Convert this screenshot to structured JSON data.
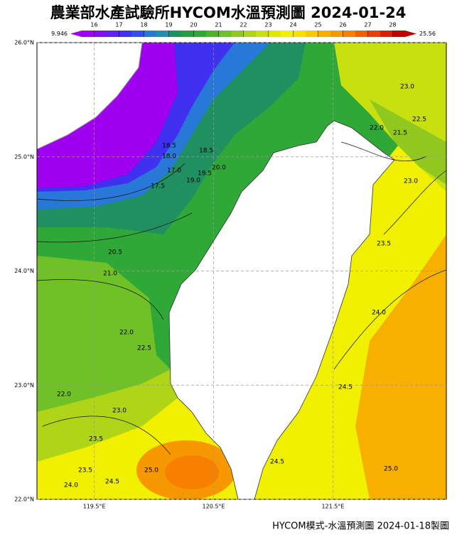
{
  "title": "農業部水產試驗所HYCOM水溫預測圖 2024-01-24",
  "colorbar": {
    "range": [
      15.5,
      28.5
    ],
    "ticks": [
      16,
      17,
      18,
      19,
      20,
      21,
      22,
      23,
      24,
      25,
      26,
      27,
      28
    ],
    "colors": [
      "#a000f0",
      "#8010f0",
      "#6020f0",
      "#4030f0",
      "#3050e8",
      "#2878d8",
      "#2090b0",
      "#209060",
      "#20a040",
      "#30a838",
      "#50b030",
      "#70c028",
      "#90c820",
      "#b0d418",
      "#c8e010",
      "#e0e800",
      "#f0f000",
      "#f8e000",
      "#f8c800",
      "#f8b000",
      "#f89800",
      "#f88000",
      "#f06000",
      "#e84000",
      "#d82000",
      "#c00000"
    ],
    "min_label": "9.946",
    "max_label": "25.56"
  },
  "map": {
    "lat_range": [
      22,
      26
    ],
    "lon_range": [
      119.02,
      122.45
    ],
    "lat_ticks": [
      {
        "value": 26,
        "label": "26.0°N"
      },
      {
        "value": 25,
        "label": "25.0°N"
      },
      {
        "value": 24,
        "label": "24.0°N"
      },
      {
        "value": 23,
        "label": "23.0°N"
      },
      {
        "value": 22,
        "label": "22.0°N"
      }
    ],
    "lon_ticks": [
      {
        "value": 119.5,
        "label": "119.5°E"
      },
      {
        "value": 120.5,
        "label": "120.5°E"
      },
      {
        "value": 121.5,
        "label": "121.5°E"
      }
    ],
    "grid": true,
    "contour_labels": [
      "18.5",
      "18.0",
      "17.5",
      "17.0",
      "19.0",
      "19.5",
      "20.0",
      "18.5",
      "20.5",
      "21.0",
      "22.0",
      "22.5",
      "22.0",
      "23.0",
      "23.5",
      "23.5",
      "24.0",
      "24.5",
      "25.0",
      "24.5",
      "24.5",
      "24.0",
      "23.5",
      "23.0",
      "22.5",
      "23.0",
      "22.0",
      "21.5",
      "25.0"
    ]
  },
  "footer": "HYCOM模式-水溫預測圖 2024-01-18製圖"
}
